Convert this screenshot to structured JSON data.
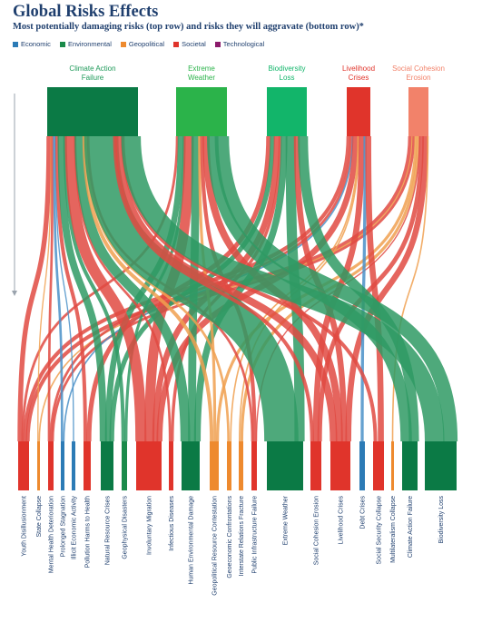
{
  "title": "Global Risks Effects",
  "subtitle": "Most potentially damaging risks (top row) and risks they will aggravate (bottom row)*",
  "colors": {
    "Economic": "#2c7bb6",
    "Environmental": "#1a8a4a",
    "Geopolitical": "#ee8a2e",
    "Societal": "#e0342b",
    "Technological": "#8b1a6b"
  },
  "legend": [
    {
      "label": "Economic",
      "color": "#2c7bb6"
    },
    {
      "label": "Environmental",
      "color": "#1a8a4a"
    },
    {
      "label": "Geopolitical",
      "color": "#ee8a2e"
    },
    {
      "label": "Societal",
      "color": "#e0342b"
    },
    {
      "label": "Technological",
      "color": "#8b1a6b"
    }
  ],
  "top_nodes": [
    {
      "label_lines": [
        "Climate Action",
        "Failure"
      ],
      "category": "Environmental",
      "color": "#0b7a45",
      "label_color": "#1f9a5a"
    },
    {
      "label_lines": [
        "Extreme",
        "Weather"
      ],
      "category": "Environmental",
      "color": "#2bb34a",
      "label_color": "#2bb34a"
    },
    {
      "label_lines": [
        "Biodiversity",
        "Loss"
      ],
      "category": "Environmental",
      "color": "#12b56a",
      "label_color": "#12b56a"
    },
    {
      "label_lines": [
        "Livelihood",
        "Crises"
      ],
      "category": "Societal",
      "color": "#e0342b",
      "label_color": "#e0342b"
    },
    {
      "label_lines": [
        "Social Cohesion",
        "Erosion"
      ],
      "category": "Societal",
      "color": "#f2826a",
      "label_color": "#f2826a"
    }
  ],
  "bottom_nodes": [
    {
      "label": "Youth Disillusionment",
      "category": "Societal"
    },
    {
      "label": "State Collapse",
      "category": "Geopolitical"
    },
    {
      "label": "Mental Health Deterioration",
      "category": "Societal"
    },
    {
      "label": "Prolonged Stagnation",
      "category": "Economic"
    },
    {
      "label": "Illicit Economic Activity",
      "category": "Economic"
    },
    {
      "label": "Pollution Harms to Health",
      "category": "Societal"
    },
    {
      "label": "Natural Resource Crises",
      "category": "Environmental"
    },
    {
      "label": "Geophysical Disasters",
      "category": "Environmental"
    },
    {
      "label": "Involuntary Migration",
      "category": "Societal"
    },
    {
      "label": "Infectious Diseases",
      "category": "Societal"
    },
    {
      "label": "Human Environmental Damage",
      "category": "Environmental"
    },
    {
      "label": "Geopolitical Resource Contestation",
      "category": "Geopolitical"
    },
    {
      "label": "Geoeconomic Confrontations",
      "category": "Geopolitical"
    },
    {
      "label": "Interstate Relations Fracture",
      "category": "Geopolitical"
    },
    {
      "label": "Public Infrastructure Failure",
      "category": "Societal"
    },
    {
      "label": "Extreme Weather",
      "category": "Environmental"
    },
    {
      "label": "Social Cohesion Erosion",
      "category": "Societal"
    },
    {
      "label": "Livelihood Crises",
      "category": "Societal"
    },
    {
      "label": "Debt Crises",
      "category": "Economic"
    },
    {
      "label": "Social Security Collapse",
      "category": "Societal"
    },
    {
      "label": "Multilateralism Collapse",
      "category": "Geopolitical"
    },
    {
      "label": "Climate Action Failure",
      "category": "Environmental"
    },
    {
      "label": "Biodiversity Loss",
      "category": "Environmental"
    }
  ]
}
